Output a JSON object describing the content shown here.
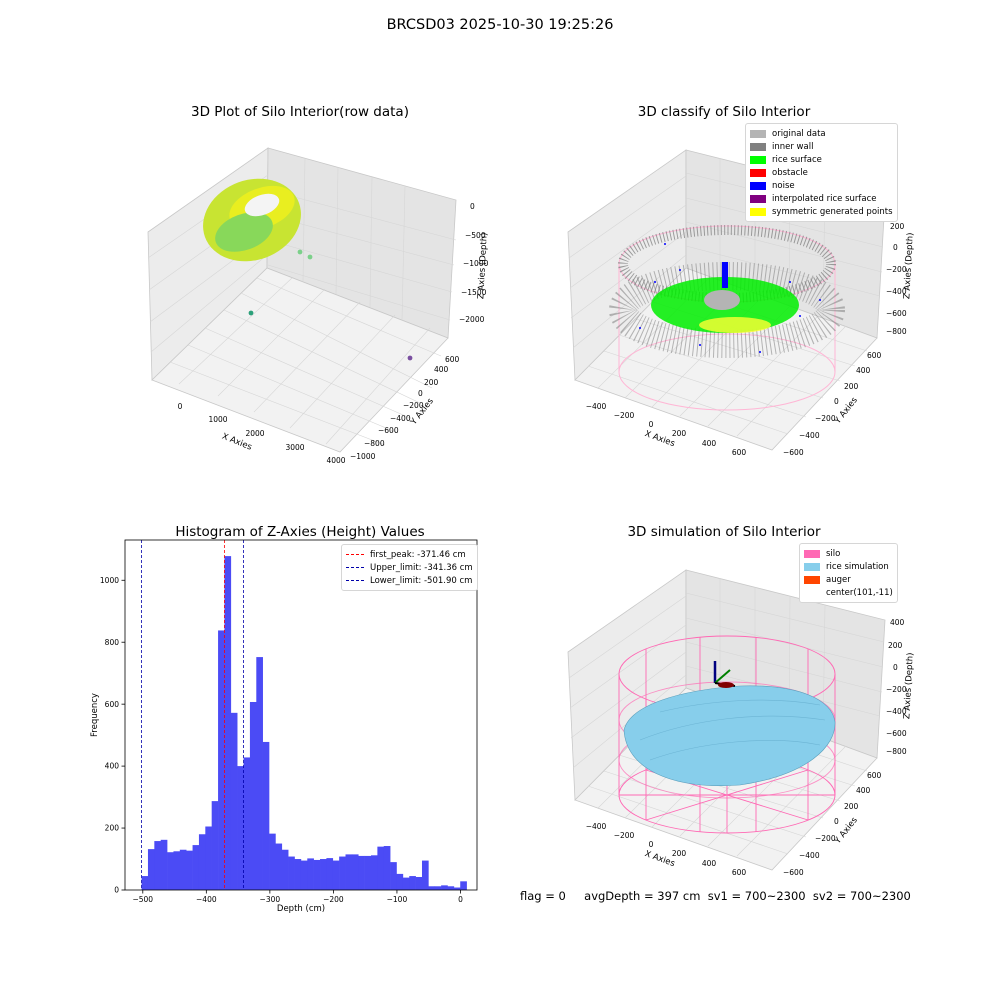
{
  "page": {
    "suptitle": "BRCSD03 2025-10-30 19:25:26"
  },
  "panels": {
    "raw": {
      "title": "3D Plot of Silo Interior(row data)",
      "x_label": "X Axies",
      "y_label": "Y Axies",
      "z_label": "Z Axies (Depth)",
      "x_ticks": [
        "0",
        "1000",
        "2000",
        "3000",
        "4000"
      ],
      "y_ticks": [
        "−1000",
        "−800",
        "−600",
        "−400",
        "−200",
        "0",
        "200",
        "400",
        "600"
      ],
      "z_ticks": [
        "0",
        "−500",
        "−1000",
        "−1500",
        "−2000"
      ]
    },
    "classify": {
      "title": "3D classify of Silo Interior",
      "x_label": "X Axies",
      "y_label": "Y Axies",
      "z_label": "Z Axies (Depth)",
      "x_ticks": [
        "−400",
        "−200",
        "0",
        "200",
        "400",
        "600"
      ],
      "y_ticks": [
        "−600",
        "−400",
        "−200",
        "0",
        "200",
        "400",
        "600"
      ],
      "z_ticks": [
        "200",
        "0",
        "−200",
        "−400",
        "−600",
        "−800"
      ],
      "legend": [
        {
          "label": "original data",
          "color": "#b4b4b4"
        },
        {
          "label": "inner wall",
          "color": "#808080"
        },
        {
          "label": "rice surface",
          "color": "#00ff00"
        },
        {
          "label": "obstacle",
          "color": "#ff0000"
        },
        {
          "label": "noise",
          "color": "#0000ff"
        },
        {
          "label": "interpolated rice surface",
          "color": "#800080"
        },
        {
          "label": "symmetric generated points",
          "color": "#ffff00"
        }
      ]
    },
    "simulation": {
      "title": "3D simulation of Silo Interior",
      "x_label": "X Axies",
      "y_label": "Y Axies",
      "z_label": "Z Axies (Depth)",
      "x_ticks": [
        "−400",
        "−200",
        "0",
        "200",
        "400",
        "600"
      ],
      "y_ticks": [
        "−600",
        "−400",
        "−200",
        "0",
        "200",
        "400",
        "600"
      ],
      "z_ticks": [
        "400",
        "200",
        "0",
        "−200",
        "−400",
        "−600",
        "−800"
      ],
      "legend": [
        {
          "label": "silo",
          "color": "#ff69b4"
        },
        {
          "label": "rice simulation",
          "color": "#87ceeb"
        },
        {
          "label": "auger",
          "color": "#ff4500"
        },
        {
          "label": "center(101,-11)",
          "color": ""
        }
      ]
    }
  },
  "footer": {
    "flag": "flag = 0",
    "stats": "avgDepth = 397 cm  sv1 = 700~2300  sv2 = 700~2300"
  },
  "chart_data": {
    "type": "bar",
    "title": "Histogram of Z-Axies (Height) Values",
    "xlabel": "Depth (cm)",
    "ylabel": "Frequency",
    "xlim": [
      -528,
      26
    ],
    "ylim": [
      0,
      1130
    ],
    "x_ticks": [
      -500,
      -400,
      -300,
      -200,
      -100,
      0
    ],
    "x_tick_labels": [
      "−500",
      "−400",
      "−300",
      "−200",
      "−100",
      "0"
    ],
    "y_ticks": [
      0,
      200,
      400,
      600,
      800,
      1000
    ],
    "bin_start": -501.9,
    "bin_width": 10.03,
    "bar_color": "#4b4bf5",
    "values": [
      45,
      132,
      158,
      162,
      122,
      125,
      130,
      127,
      145,
      180,
      205,
      287,
      838,
      1078,
      572,
      400,
      428,
      607,
      752,
      478,
      182,
      150,
      130,
      108,
      100,
      95,
      102,
      97,
      100,
      103,
      95,
      108,
      115,
      115,
      110,
      110,
      112,
      140,
      142,
      90,
      52,
      40,
      45,
      42,
      95,
      12,
      12,
      15,
      12,
      8,
      28
    ],
    "lines": [
      {
        "label": "first_peak: -371.46 cm",
        "x": -371.46,
        "color": "#ff0000"
      },
      {
        "label": "Upper_limit: -341.36 cm",
        "x": -341.36,
        "color": "#0000aa"
      },
      {
        "label": "Lower_limit: -501.90 cm",
        "x": -501.9,
        "color": "#0000aa"
      }
    ],
    "legend_position": "upper right"
  }
}
